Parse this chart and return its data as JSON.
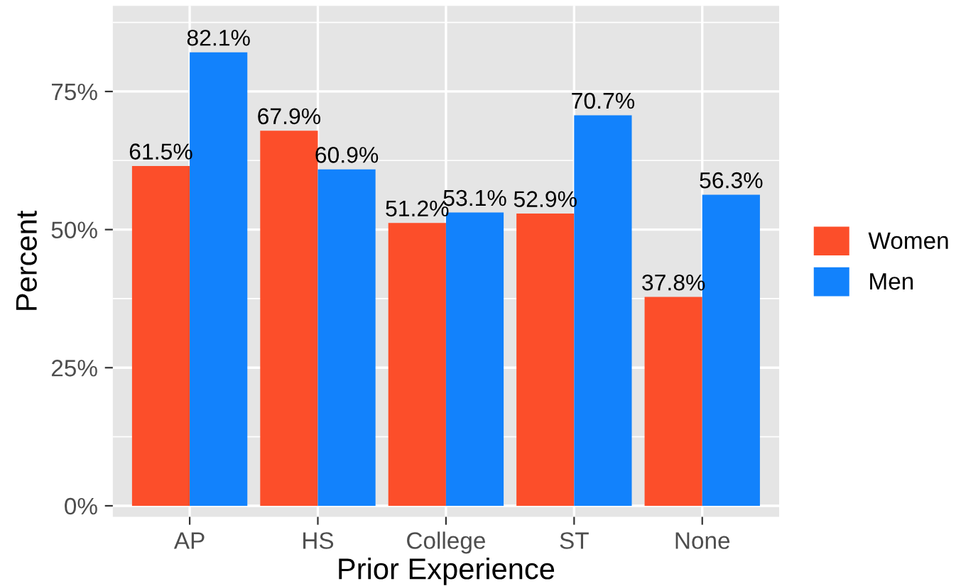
{
  "chart_data": {
    "type": "bar",
    "xlabel": "Prior Experience",
    "ylabel": "Percent",
    "categories": [
      "AP",
      "HS",
      "College",
      "ST",
      "None"
    ],
    "series": [
      {
        "name": "Women",
        "color": "#fc4e2a",
        "values": [
          61.5,
          67.9,
          51.2,
          52.9,
          37.8
        ],
        "value_labels": [
          "61.5%",
          "67.9%",
          "51.2%",
          "52.9%",
          "37.8%"
        ]
      },
      {
        "name": "Men",
        "color": "#1282fc",
        "values": [
          82.1,
          60.9,
          53.1,
          70.7,
          56.3
        ],
        "value_labels": [
          "82.1%",
          "60.9%",
          "53.1%",
          "70.7%",
          "56.3%"
        ]
      }
    ],
    "ylim": [
      -2,
      90.5
    ],
    "yticks": [
      {
        "value": 0,
        "label": "0%"
      },
      {
        "value": 25,
        "label": "25%"
      },
      {
        "value": 50,
        "label": "50%"
      },
      {
        "value": 75,
        "label": "75%"
      }
    ],
    "grid": true,
    "legend": "right"
  }
}
